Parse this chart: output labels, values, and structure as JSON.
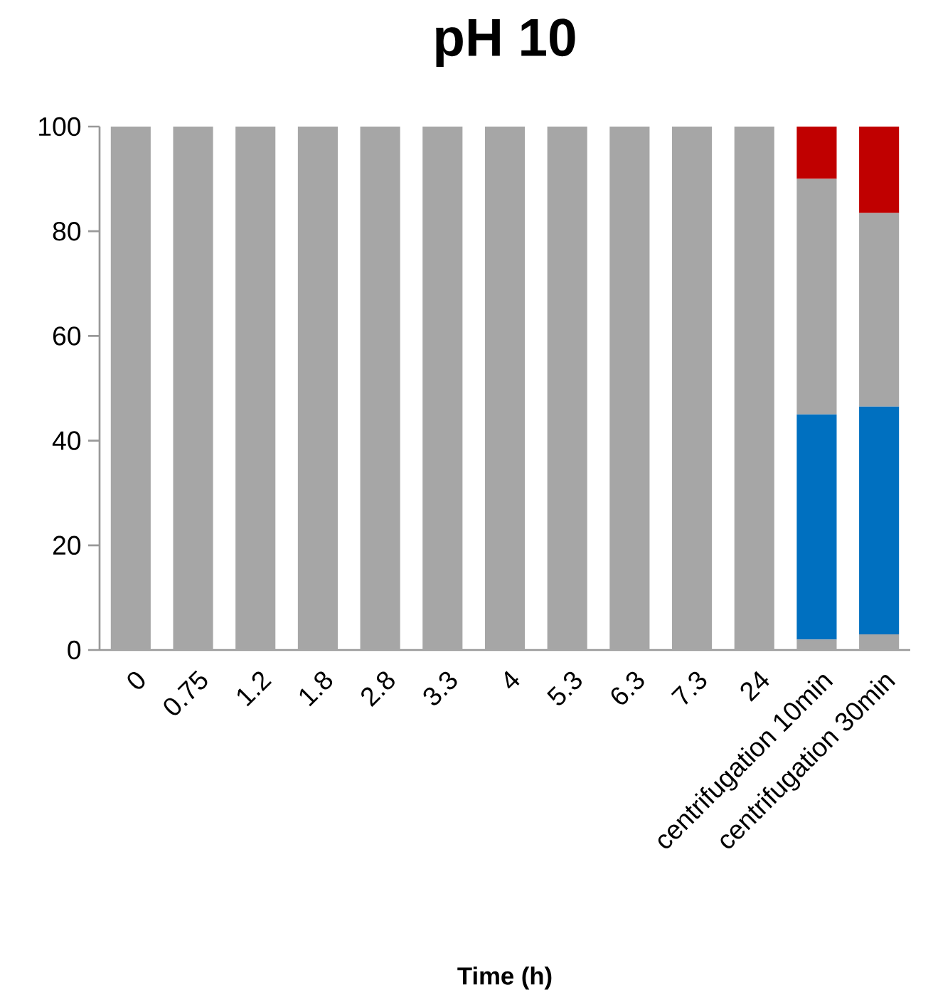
{
  "chart_data": {
    "type": "bar",
    "stacked": true,
    "title": "pH 10",
    "xlabel": "Time (h)",
    "categories": [
      "0",
      "0.75",
      "1.2",
      "1.8",
      "2.8",
      "3.3",
      "4",
      "5.3",
      "6.3",
      "7.3",
      "24",
      "centrifugation 10min",
      "centrifugation 30min"
    ],
    "series": [
      {
        "color": "#a6a6a6",
        "values": [
          100,
          100,
          100,
          100,
          100,
          100,
          100,
          100,
          100,
          100,
          100,
          2,
          3
        ]
      },
      {
        "color": "#0070c0",
        "values": [
          0,
          0,
          0,
          0,
          0,
          0,
          0,
          0,
          0,
          0,
          0,
          43,
          43.5
        ]
      },
      {
        "color": "#a6a6a6",
        "values": [
          0,
          0,
          0,
          0,
          0,
          0,
          0,
          0,
          0,
          0,
          0,
          45,
          37
        ]
      },
      {
        "color": "#c00000",
        "values": [
          0,
          0,
          0,
          0,
          0,
          0,
          0,
          0,
          0,
          0,
          0,
          10,
          16.5
        ]
      }
    ],
    "ylim": [
      0,
      100
    ],
    "yticks": [
      0,
      20,
      40,
      60,
      80,
      100
    ]
  }
}
